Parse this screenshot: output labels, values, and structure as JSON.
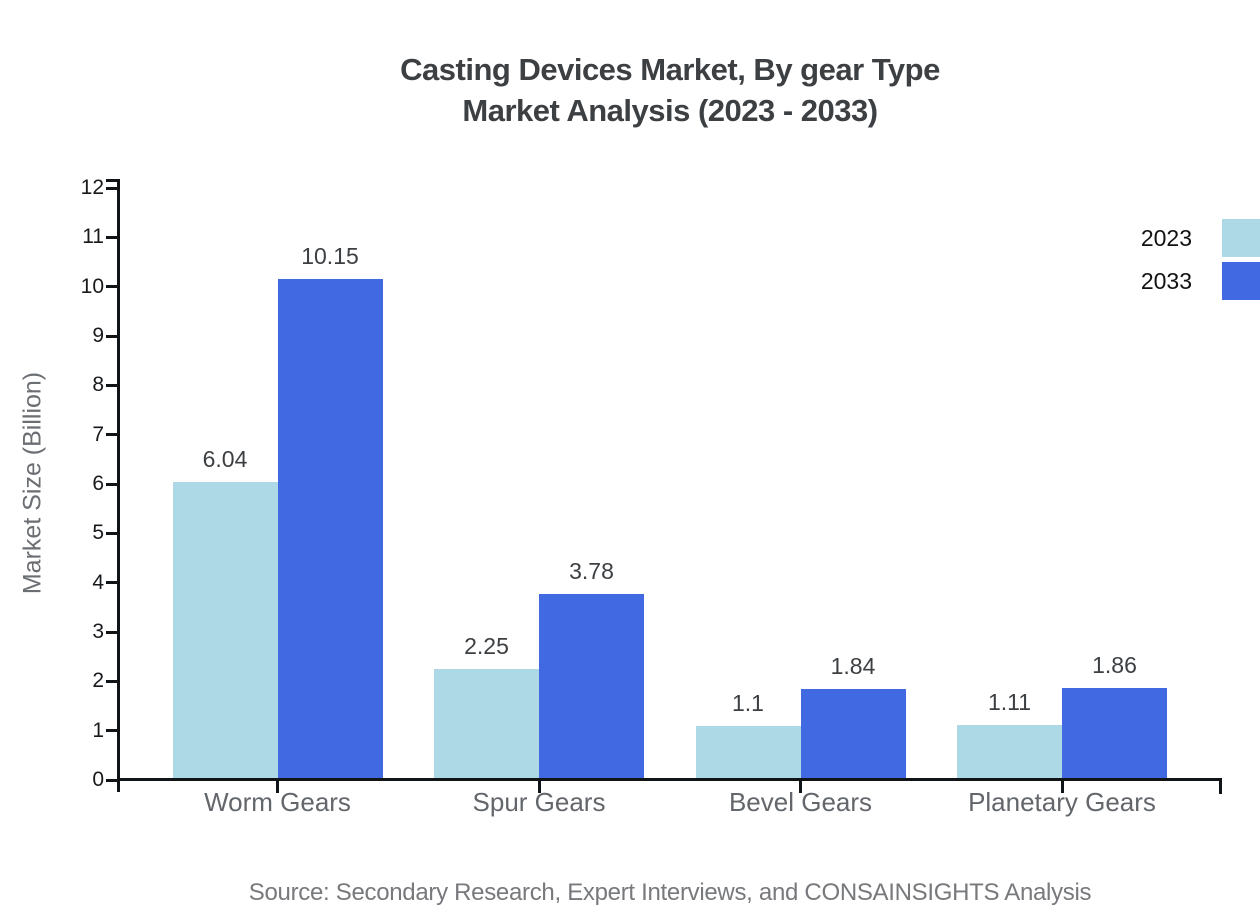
{
  "chart_data": {
    "type": "bar",
    "title_line1": "Casting Devices Market, By gear Type",
    "title_line2": "Market Analysis (2023 - 2033)",
    "ylabel": "Market Size (Billion)",
    "categories": [
      "Worm Gears",
      "Spur Gears",
      "Bevel Gears",
      "Planetary Gears"
    ],
    "series": [
      {
        "name": "2023",
        "color": "#ADD8E6",
        "values": [
          6.04,
          2.25,
          1.1,
          1.11
        ]
      },
      {
        "name": "2033",
        "color": "#4169E1",
        "values": [
          10.15,
          3.78,
          1.84,
          1.86
        ]
      }
    ],
    "ylim": [
      0,
      12
    ],
    "ytick_step": 1,
    "grid": false,
    "legend_position": "top-right",
    "axis_color": "#111417",
    "source": "Source: Secondary Research, Expert Interviews, and CONSAINSIGHTS Analysis"
  }
}
